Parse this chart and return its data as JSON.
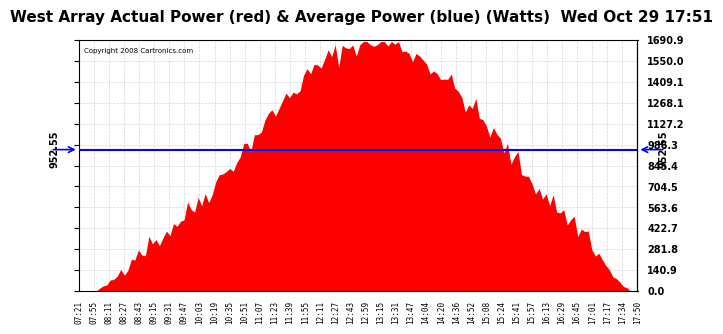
{
  "title": "West Array Actual Power (red) & Average Power (blue) (Watts)  Wed Oct 29 17:51",
  "copyright_text": "Copyright 2008 Cartronics.com",
  "average_power": 952.55,
  "ymax": 1690.9,
  "ymin": 0.0,
  "yticks_right": [
    0.0,
    140.9,
    281.8,
    422.7,
    563.6,
    704.5,
    845.4,
    986.3,
    1127.2,
    1268.1,
    1409.1,
    1550.0,
    1690.9
  ],
  "xtick_labels": [
    "07:21",
    "07:55",
    "08:11",
    "08:27",
    "08:43",
    "09:15",
    "09:31",
    "09:47",
    "10:03",
    "10:19",
    "10:35",
    "10:51",
    "11:07",
    "11:23",
    "11:39",
    "11:55",
    "12:11",
    "12:27",
    "12:43",
    "12:59",
    "13:15",
    "13:31",
    "13:47",
    "14:04",
    "14:20",
    "14:36",
    "14:52",
    "15:08",
    "15:24",
    "15:41",
    "15:57",
    "16:13",
    "16:29",
    "16:45",
    "17:01",
    "17:17",
    "17:34",
    "17:50"
  ],
  "area_color": "#FF0000",
  "line_color": "#0000FF",
  "bg_color": "#FFFFFF",
  "grid_color": "#CCCCCC",
  "title_fontsize": 11,
  "label_avg": "952.55"
}
